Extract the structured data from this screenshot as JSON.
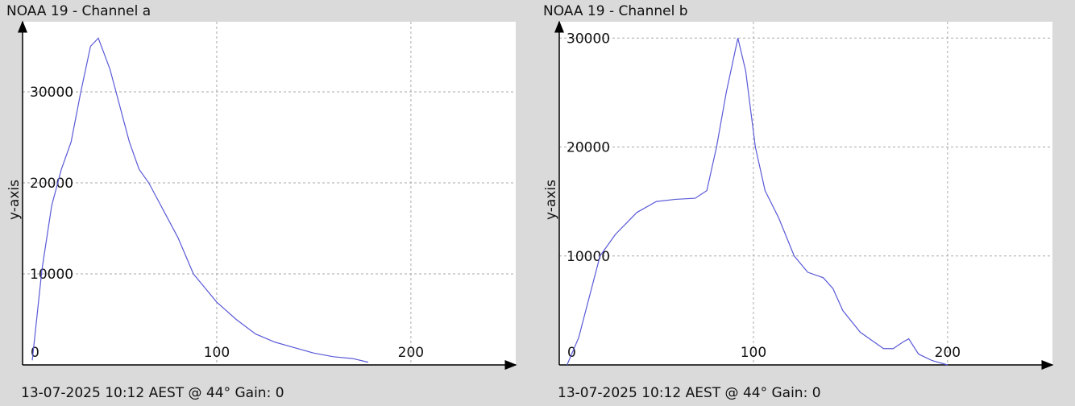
{
  "chart_data": [
    {
      "type": "line",
      "title": "NOAA 19 - Channel a",
      "ylabel": "y-axis",
      "footer": "13-07-2025 10:12 AEST @ 44° Gain: 0",
      "x": [
        5,
        10,
        15,
        20,
        25,
        30,
        35,
        39,
        45,
        50,
        55,
        60,
        65,
        70,
        80,
        88,
        100,
        110,
        120,
        130,
        140,
        150,
        160,
        170,
        178
      ],
      "series": [
        {
          "color": "#5a5ad8",
          "values": [
            500,
            10500,
            17500,
            21500,
            24500,
            30000,
            35000,
            35900,
            32500,
            28500,
            24500,
            21500,
            20000,
            18000,
            14000,
            10000,
            6900,
            5000,
            3400,
            2500,
            1900,
            1300,
            900,
            700,
            300
          ]
        }
      ],
      "xlim": [
        0,
        254
      ],
      "ylim": [
        0,
        37700
      ],
      "xticks": [
        0,
        100,
        200
      ],
      "yticks": [
        10000,
        20000,
        30000
      ],
      "grid": true
    },
    {
      "type": "line",
      "title": "NOAA 19 - Channel b",
      "ylabel": "y-axis",
      "footer": "13-07-2025 10:12 AEST @ 44° Gain: 0",
      "x": [
        4,
        10,
        21,
        29,
        40,
        50,
        60,
        70,
        76,
        81,
        86,
        92,
        96,
        101,
        106,
        113,
        121,
        128,
        136,
        141,
        146,
        155,
        167,
        172,
        177,
        180,
        185,
        192,
        200
      ],
      "series": [
        {
          "color": "#5a5ad8",
          "values": [
            0,
            2500,
            10000,
            12000,
            14000,
            15000,
            15200,
            15300,
            16000,
            20000,
            25000,
            30000,
            27000,
            20000,
            16000,
            13500,
            10000,
            8500,
            8000,
            7000,
            5000,
            3000,
            1500,
            1500,
            2100,
            2400,
            1000,
            400,
            0
          ]
        }
      ],
      "xlim": [
        0,
        254
      ],
      "ylim": [
        0,
        31500
      ],
      "xticks": [
        0,
        100,
        200
      ],
      "yticks": [
        10000,
        20000,
        30000
      ],
      "grid": true
    }
  ]
}
